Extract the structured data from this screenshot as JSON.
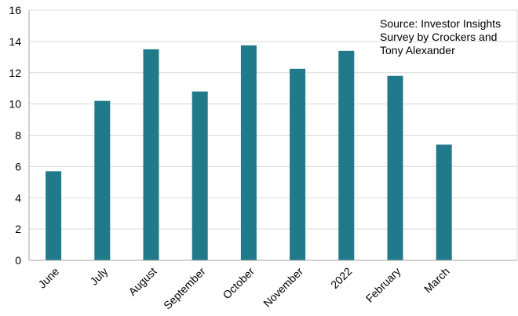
{
  "chart_data": {
    "type": "bar",
    "categories": [
      "June",
      "July",
      "August",
      "September",
      "October",
      "November",
      "2022",
      "February",
      "March",
      ""
    ],
    "values": [
      5.7,
      10.2,
      13.5,
      10.8,
      13.75,
      12.25,
      13.4,
      11.8,
      7.4,
      null
    ],
    "yticks": [
      "0",
      "2",
      "4",
      "6",
      "8",
      "10",
      "12",
      "14",
      "16"
    ],
    "ylim": [
      0,
      16
    ],
    "grid": true,
    "title": "",
    "xlabel": "",
    "ylabel": "",
    "bar_color": "#217a8a",
    "annotation": {
      "lines": [
        "Source: Investor Insights",
        "Survey by Crockers and",
        "Tony Alexander"
      ]
    }
  }
}
